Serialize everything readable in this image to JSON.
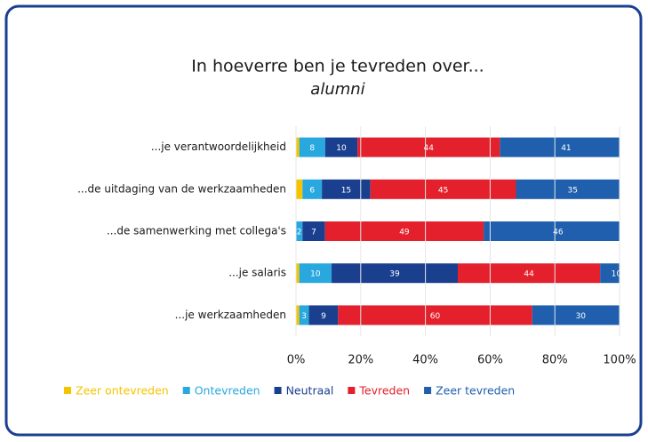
{
  "chart_data": {
    "type": "stacked_barh",
    "title": "In hoeverre ben je tevreden over...",
    "subtitle": "alumni",
    "categories": [
      "...je verantwoordelijkheid",
      "...de uitdaging van de werkzaamheden",
      "...de samenwerking met collega's",
      "...je salaris",
      "...je werkzaamheden"
    ],
    "series": [
      {
        "name": "Zeer ontevreden",
        "color": "#f5c400",
        "values": [
          1,
          2,
          null,
          1,
          1
        ]
      },
      {
        "name": "Ontevreden",
        "color": "#29a8e0",
        "values": [
          8,
          6,
          2,
          10,
          3
        ]
      },
      {
        "name": "Neutraal",
        "color": "#1b3f8f",
        "values": [
          10,
          15,
          7,
          39,
          9
        ]
      },
      {
        "name": "Tevreden",
        "color": "#e3202c",
        "values": [
          44,
          45,
          49,
          44,
          60
        ]
      },
      {
        "name": "Zeer tevreden",
        "color": "#1f5fae",
        "values": [
          41,
          35,
          46,
          10,
          30
        ]
      }
    ],
    "labeled_series": [
      false,
      true,
      true,
      true,
      true
    ],
    "xlim": [
      0,
      100
    ],
    "xticks": [
      {
        "value": 0,
        "label": "0%"
      },
      {
        "value": 20,
        "label": "20%"
      },
      {
        "value": 40,
        "label": "40%"
      },
      {
        "value": 60,
        "label": "60%"
      },
      {
        "value": 80,
        "label": "80%"
      },
      {
        "value": 100,
        "label": "100%"
      }
    ],
    "grid": true
  }
}
